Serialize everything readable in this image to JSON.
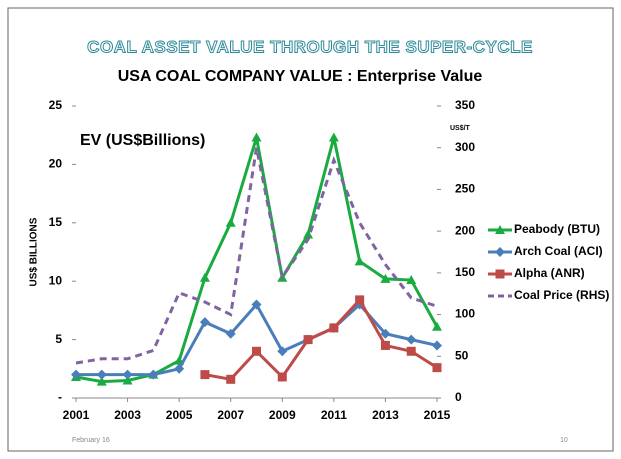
{
  "heading": "COAL ASSET VALUE THROUGH THE SUPER-CYCLE",
  "footer": {
    "date": "February 16",
    "page": "10"
  },
  "chart_data": {
    "type": "line",
    "title": "USA COAL COMPANY VALUE : Enterprise Value",
    "annotation": "EV (US$Billions)",
    "y_label": "US$ BILLIONS",
    "y2_label": "US$/T",
    "x": [
      2001,
      2002,
      2003,
      2004,
      2005,
      2006,
      2007,
      2008,
      2009,
      2010,
      2011,
      2012,
      2013,
      2014,
      2015
    ],
    "xlim": [
      2001,
      2015
    ],
    "xticks": [
      2001,
      2003,
      2005,
      2007,
      2009,
      2011,
      2013,
      2015
    ],
    "ylim": [
      0,
      25
    ],
    "yticks": [
      {
        "value": 0,
        "label": "-"
      },
      5,
      10,
      15,
      20,
      25
    ],
    "y2lim": [
      0,
      350
    ],
    "y2ticks": [
      0,
      50,
      100,
      150,
      200,
      250,
      300,
      350
    ],
    "legend": "right",
    "series": [
      {
        "name": "Peabody (BTU)",
        "color": "#1aab40",
        "marker": "triangle",
        "values": [
          1.8,
          1.4,
          1.5,
          2.0,
          3.2,
          10.3,
          15.0,
          22.3,
          10.3,
          14.0,
          22.3,
          11.7,
          10.2,
          10.1,
          6.1
        ]
      },
      {
        "name": "Arch Coal (ACI)",
        "color": "#4a7ebb",
        "marker": "diamond",
        "values": [
          2.0,
          2.0,
          2.0,
          2.0,
          2.5,
          6.5,
          5.5,
          8.0,
          4.0,
          5.0,
          6.0,
          8.0,
          5.5,
          5.0,
          4.5
        ]
      },
      {
        "name": "Alpha (ANR)",
        "color": "#be4b48",
        "marker": "square",
        "values": [
          null,
          null,
          null,
          null,
          null,
          2.0,
          1.6,
          4.0,
          1.8,
          5.0,
          6.0,
          8.4,
          4.5,
          4.0,
          2.6
        ]
      },
      {
        "name": "Coal Price (RHS)",
        "color": "#8064a2",
        "marker": "none",
        "dashed": true,
        "axis": "y2",
        "values": [
          42,
          47,
          47,
          57,
          126,
          115,
          100,
          300,
          145,
          190,
          285,
          210,
          160,
          120,
          110
        ]
      }
    ]
  }
}
